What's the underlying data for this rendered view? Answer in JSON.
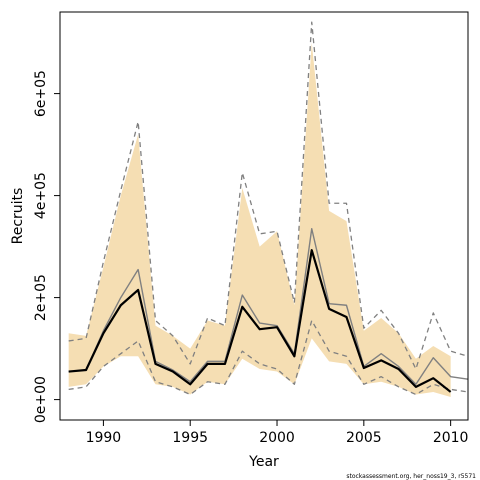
{
  "chart_data": {
    "type": "line",
    "xlabel": "Year",
    "ylabel": "Recruits",
    "xlim": [
      1987.5,
      2011.0
    ],
    "ylim": [
      -40000,
      760000
    ],
    "x_ticks": [
      1990,
      1995,
      2000,
      2005,
      2010
    ],
    "x_tick_labels": [
      "1990",
      "1995",
      "2000",
      "2005",
      "2010"
    ],
    "y_ticks": [
      0,
      200000,
      400000,
      600000
    ],
    "y_tick_labels": [
      "0e+00",
      "2e+05",
      "4e+05",
      "6e+05"
    ],
    "footer": "stockassessment.org, her_noss19_3, r5571",
    "colors": {
      "ci_band": "#f5deb3",
      "best_estimate": "#000000",
      "comparison_estimate": "#808080",
      "comparison_bounds": "#808080",
      "frame": "#000000"
    },
    "band": {
      "x": [
        1988,
        1989,
        1990,
        1991,
        1992,
        1993,
        1994,
        1995,
        1996,
        1997,
        1998,
        1999,
        2000,
        2001,
        2002,
        2003,
        2004,
        2005,
        2006,
        2007,
        2008,
        2009,
        2010
      ],
      "upper": [
        130000,
        125000,
        260000,
        400000,
        520000,
        145000,
        125000,
        100000,
        155000,
        145000,
        415000,
        300000,
        330000,
        185000,
        700000,
        370000,
        350000,
        135000,
        160000,
        130000,
        80000,
        105000,
        85000
      ],
      "lower": [
        25000,
        30000,
        65000,
        85000,
        85000,
        30000,
        25000,
        10000,
        35000,
        30000,
        80000,
        60000,
        55000,
        30000,
        120000,
        75000,
        70000,
        30000,
        35000,
        25000,
        10000,
        15000,
        5000
      ]
    },
    "series": [
      {
        "name": "",
        "style": "thick-black",
        "x": [
          1988,
          1989,
          1990,
          1991,
          1992,
          1993,
          1994,
          1995,
          1996,
          1997,
          1998,
          1999,
          2000,
          2001,
          2002,
          2003,
          2004,
          2005,
          2006,
          2007,
          2008,
          2009,
          2010
        ],
        "values": [
          55000,
          58000,
          130000,
          185000,
          215000,
          70000,
          55000,
          30000,
          70000,
          70000,
          182000,
          138000,
          142000,
          85000,
          293000,
          178000,
          162000,
          62000,
          77000,
          60000,
          25000,
          42000,
          15000
        ]
      },
      {
        "name": "",
        "style": "thin-gray",
        "x": [
          1988,
          1989,
          1990,
          1991,
          1992,
          1993,
          1994,
          1995,
          1996,
          1997,
          1998,
          1999,
          2000,
          2001,
          2002,
          2003,
          2004,
          2005,
          2006,
          2007,
          2008,
          2009,
          2010,
          2011
        ],
        "values": [
          55000,
          58000,
          135000,
          200000,
          255000,
          75000,
          58000,
          35000,
          75000,
          75000,
          205000,
          150000,
          145000,
          90000,
          335000,
          188000,
          185000,
          65000,
          90000,
          65000,
          30000,
          82000,
          45000,
          40000
        ]
      },
      {
        "name": "",
        "style": "dashed-gray",
        "x": [
          1988,
          1989,
          1990,
          1991,
          1992,
          1993,
          1994,
          1995,
          1996,
          1997,
          1998,
          1999,
          2000,
          2001,
          2002,
          2003,
          2004,
          2005,
          2006,
          2007,
          2008,
          2009,
          2010,
          2011
        ],
        "values": [
          115000,
          120000,
          270000,
          410000,
          545000,
          155000,
          125000,
          70000,
          160000,
          145000,
          445000,
          325000,
          330000,
          190000,
          740000,
          385000,
          385000,
          140000,
          175000,
          130000,
          60000,
          170000,
          95000,
          85000
        ]
      },
      {
        "name": "",
        "style": "dashed-gray",
        "x": [
          1988,
          1989,
          1990,
          1991,
          1992,
          1993,
          1994,
          1995,
          1996,
          1997,
          1998,
          1999,
          2000,
          2001,
          2002,
          2003,
          2004,
          2005,
          2006,
          2007,
          2008,
          2009,
          2010,
          2011
        ],
        "values": [
          20000,
          25000,
          65000,
          90000,
          115000,
          35000,
          25000,
          10000,
          35000,
          30000,
          95000,
          70000,
          60000,
          30000,
          155000,
          95000,
          85000,
          30000,
          45000,
          25000,
          10000,
          30000,
          20000,
          15000
        ]
      }
    ]
  }
}
